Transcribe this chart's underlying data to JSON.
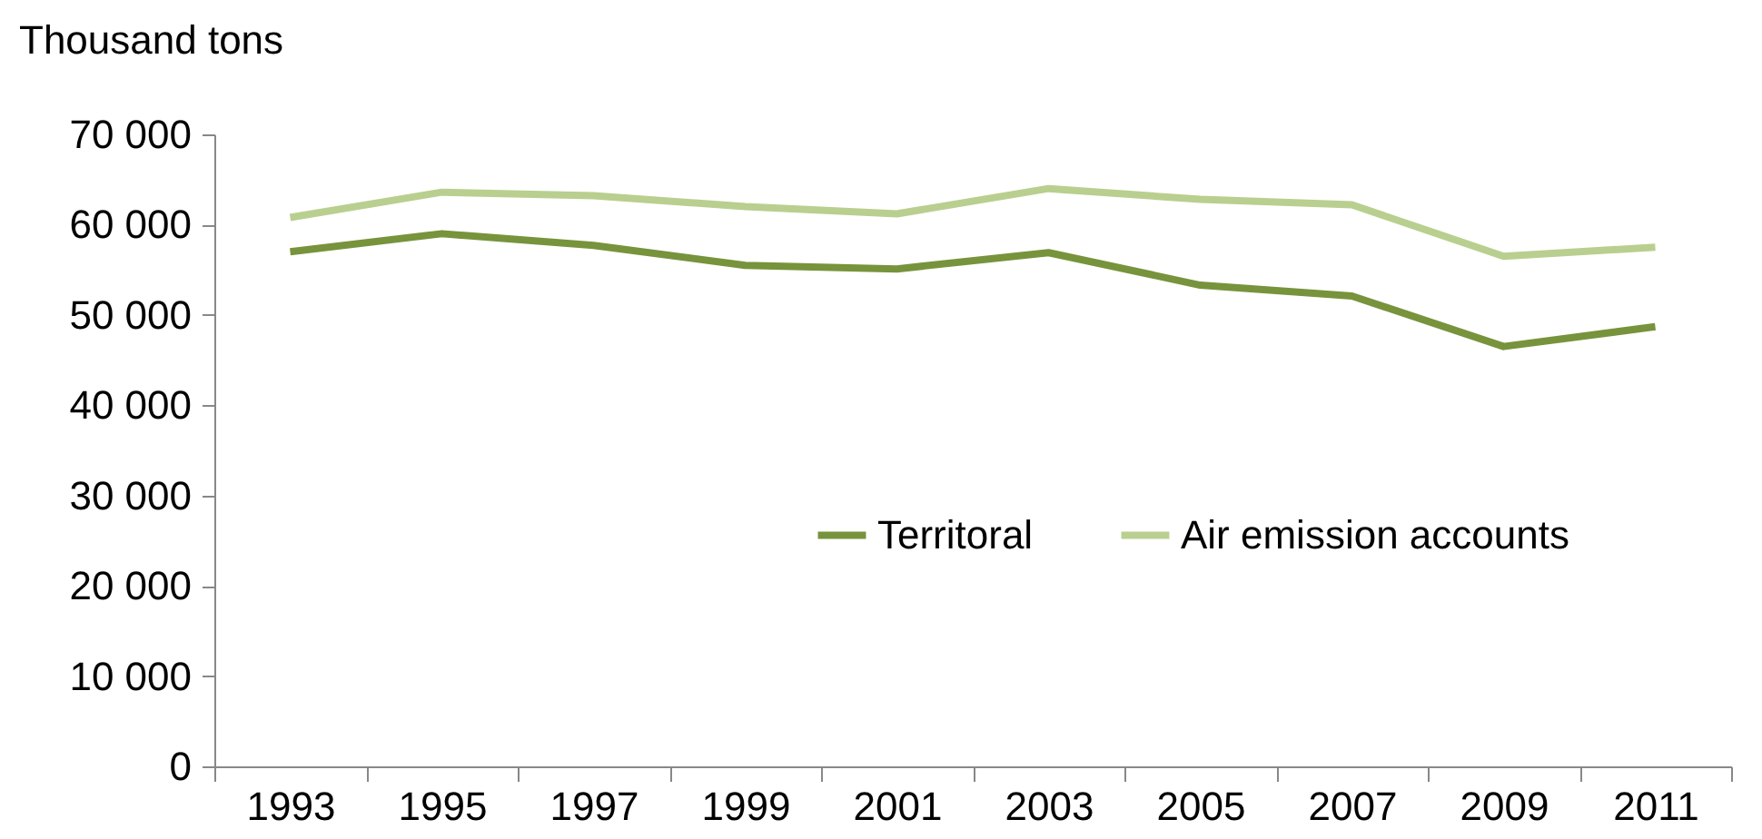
{
  "chart_data": {
    "type": "line",
    "ylabel": "Thousand tons",
    "categories": [
      "1993",
      "1995",
      "1997",
      "1999",
      "2001",
      "2003",
      "2005",
      "2007",
      "2009",
      "2011"
    ],
    "series": [
      {
        "name": "Territoral",
        "color": "#77933c",
        "values": [
          57000,
          59000,
          57700,
          55500,
          55100,
          56900,
          53300,
          52100,
          46500,
          48700
        ]
      },
      {
        "name": "Air emission accounts",
        "color": "#b9cf8f",
        "values": [
          60800,
          63600,
          63200,
          62000,
          61200,
          64000,
          62800,
          62200,
          56500,
          57500
        ]
      }
    ],
    "ylim": [
      0,
      70000
    ],
    "yticks": [
      {
        "value": 0,
        "label": "0"
      },
      {
        "value": 10000,
        "label": "10 000"
      },
      {
        "value": 20000,
        "label": "20 000"
      },
      {
        "value": 30000,
        "label": "30 000"
      },
      {
        "value": 40000,
        "label": "40 000"
      },
      {
        "value": 50000,
        "label": "50 000"
      },
      {
        "value": 60000,
        "label": "60 000"
      },
      {
        "value": 70000,
        "label": "70 000"
      }
    ],
    "legend": "center",
    "grid": false,
    "marker": "none",
    "line_style": "solid"
  }
}
